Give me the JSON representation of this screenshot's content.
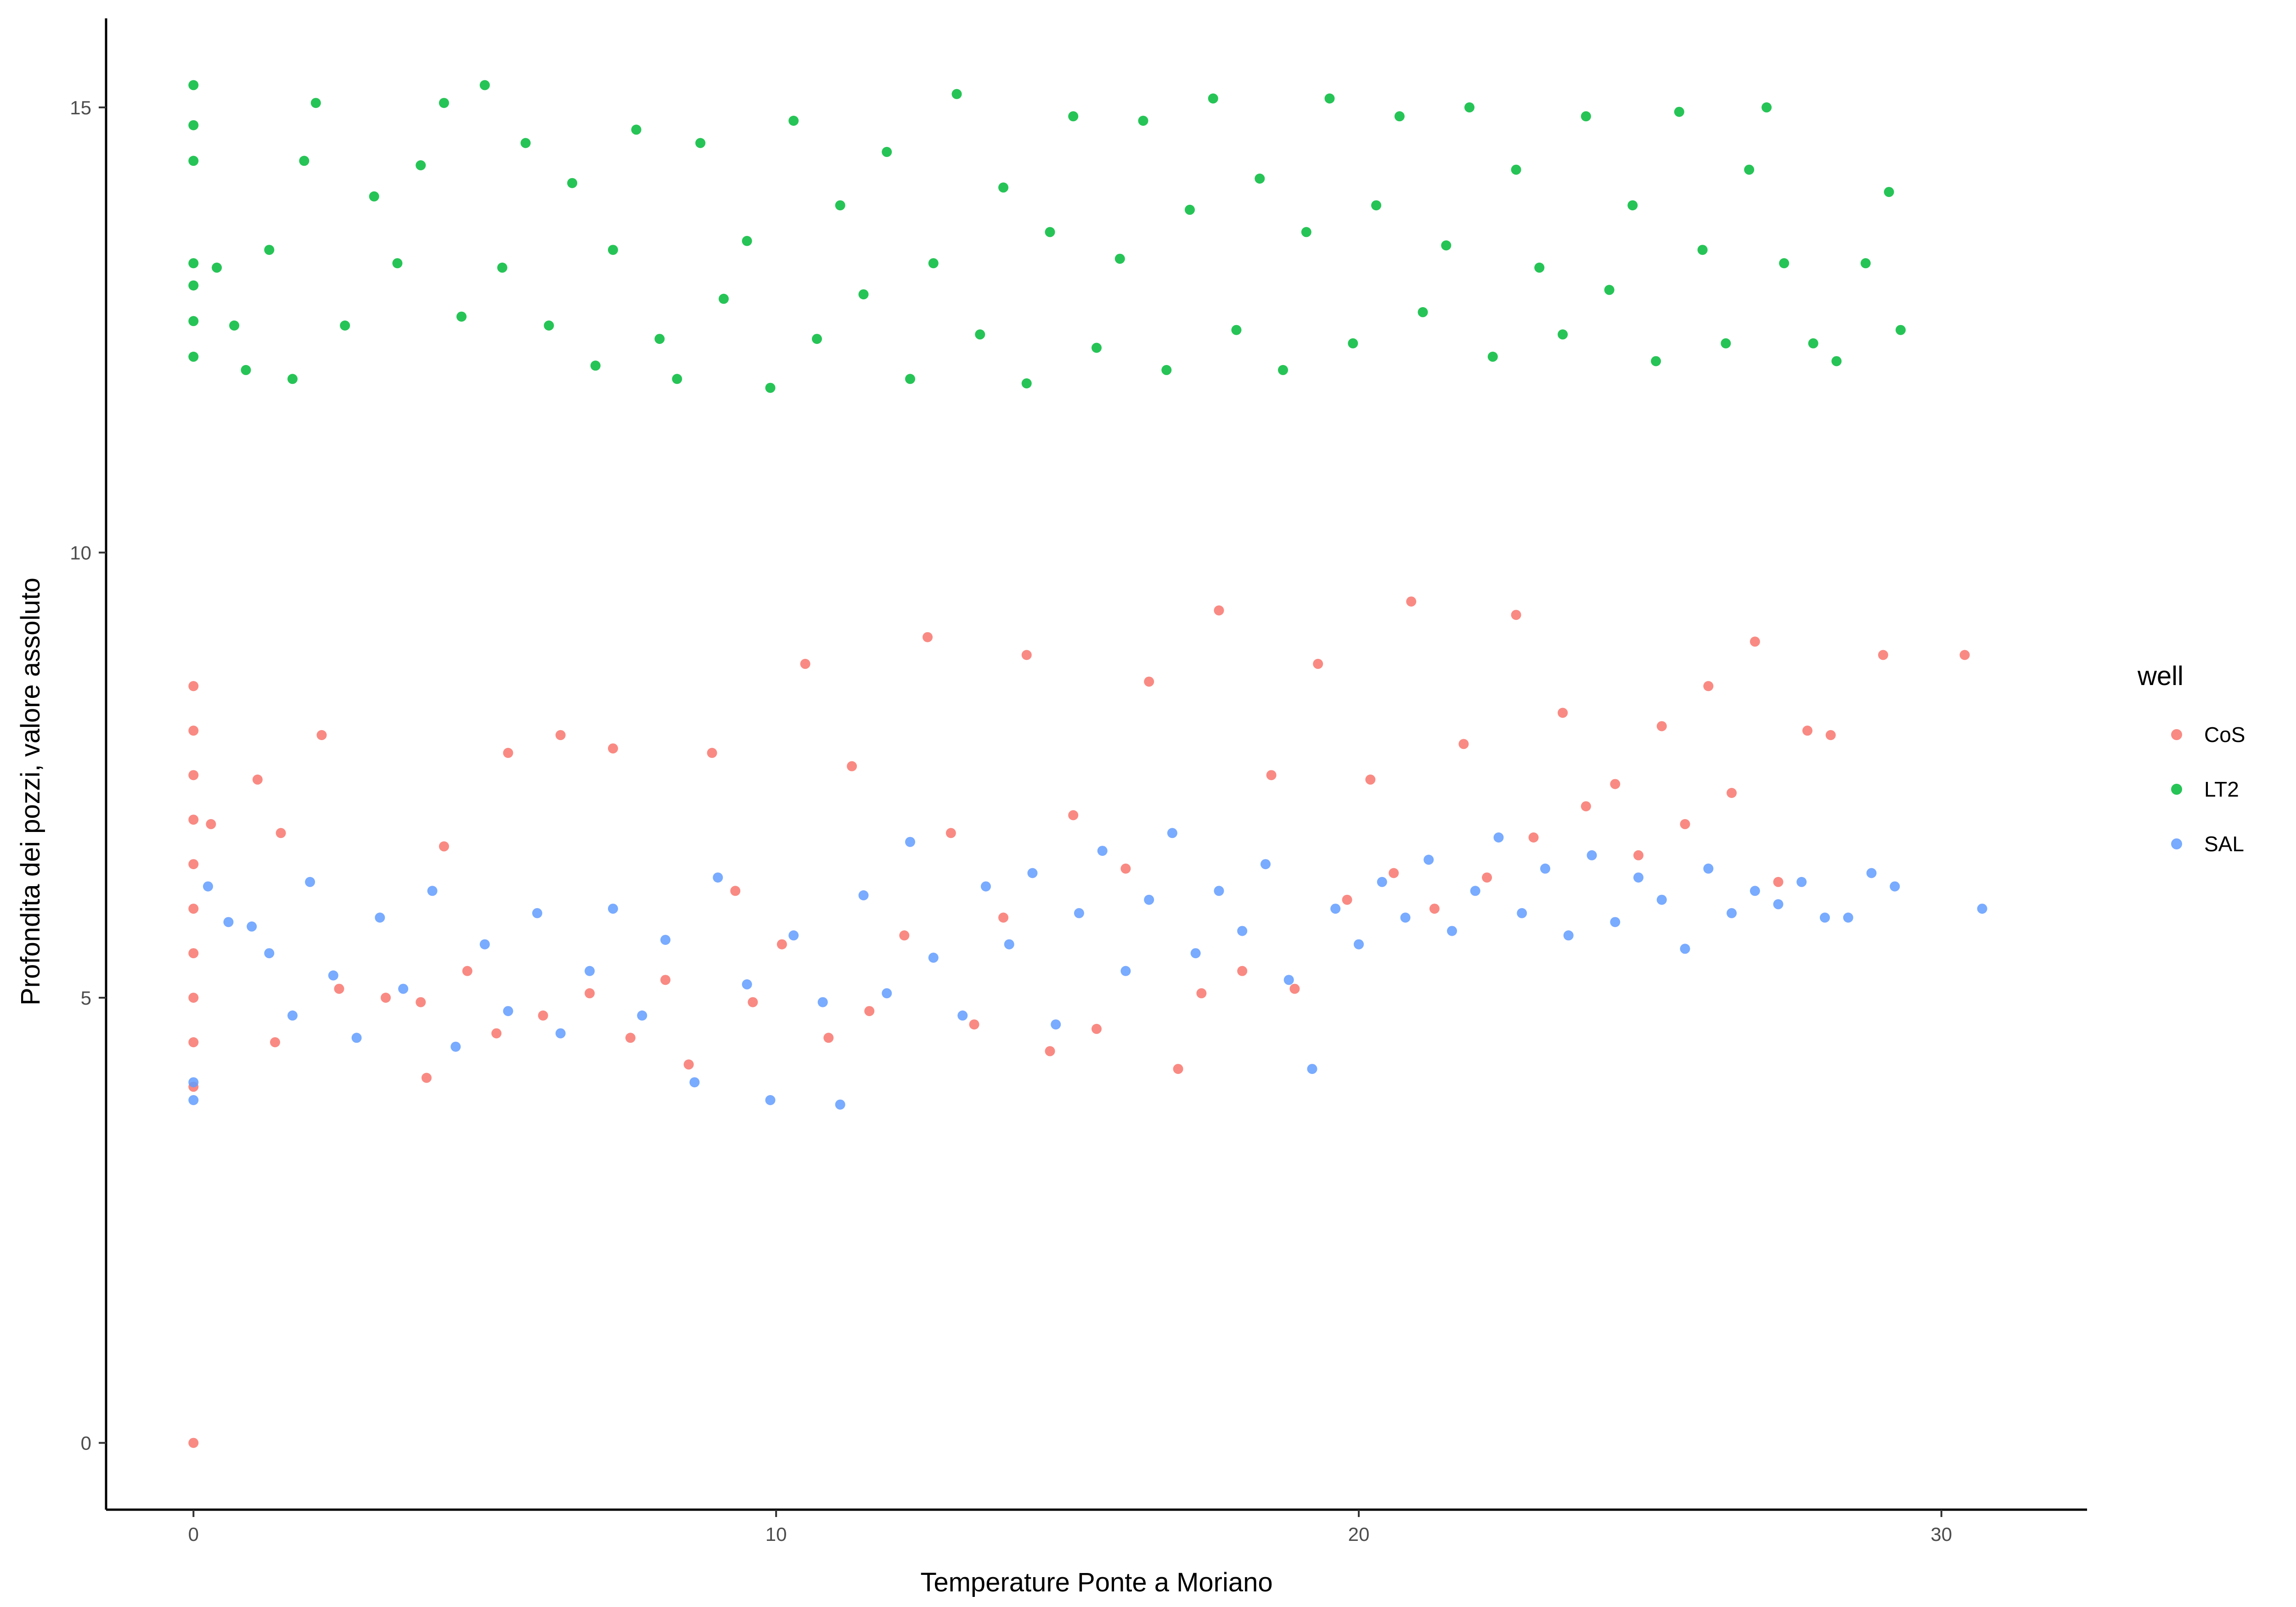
{
  "chart_data": {
    "type": "scatter",
    "title": "",
    "xlabel": "Temperature Ponte a Moriano",
    "ylabel": "Profondita dei pozzi, valore assoluto",
    "xlim": [
      -1.5,
      32.5
    ],
    "ylim": [
      -0.75,
      16.0
    ],
    "xticks": [
      0,
      10,
      20,
      30
    ],
    "yticks": [
      0,
      5,
      10,
      15
    ],
    "grid": false,
    "legend": {
      "title": "well",
      "position": "right"
    },
    "series": [
      {
        "name": "CoS",
        "color": "#F8766D",
        "points": [
          [
            0,
            0.0
          ],
          [
            0,
            4.0
          ],
          [
            0,
            4.5
          ],
          [
            0,
            5.0
          ],
          [
            0,
            5.5
          ],
          [
            0,
            6.0
          ],
          [
            0,
            6.5
          ],
          [
            0,
            7.0
          ],
          [
            0,
            7.5
          ],
          [
            0,
            8.0
          ],
          [
            0,
            8.5
          ],
          [
            0.3,
            6.95
          ],
          [
            1.1,
            7.45
          ],
          [
            1.4,
            4.5
          ],
          [
            1.5,
            6.85
          ],
          [
            2.2,
            7.95
          ],
          [
            2.5,
            5.1
          ],
          [
            3.3,
            5.0
          ],
          [
            3.9,
            4.95
          ],
          [
            4.0,
            4.1
          ],
          [
            4.3,
            6.7
          ],
          [
            4.7,
            5.3
          ],
          [
            5.2,
            4.6
          ],
          [
            5.4,
            7.75
          ],
          [
            6.0,
            4.8
          ],
          [
            6.3,
            7.95
          ],
          [
            6.8,
            5.05
          ],
          [
            7.2,
            7.8
          ],
          [
            7.5,
            4.55
          ],
          [
            8.1,
            5.2
          ],
          [
            8.5,
            4.25
          ],
          [
            8.9,
            7.75
          ],
          [
            9.3,
            6.2
          ],
          [
            9.6,
            4.95
          ],
          [
            10.1,
            5.6
          ],
          [
            10.5,
            8.75
          ],
          [
            10.9,
            4.55
          ],
          [
            11.3,
            7.6
          ],
          [
            11.6,
            4.85
          ],
          [
            12.2,
            5.7
          ],
          [
            12.6,
            9.05
          ],
          [
            13.0,
            6.85
          ],
          [
            13.4,
            4.7
          ],
          [
            13.9,
            5.9
          ],
          [
            14.3,
            8.85
          ],
          [
            14.7,
            4.4
          ],
          [
            15.1,
            7.05
          ],
          [
            15.5,
            4.65
          ],
          [
            16.0,
            6.45
          ],
          [
            16.4,
            8.55
          ],
          [
            16.9,
            4.2
          ],
          [
            17.3,
            5.05
          ],
          [
            17.6,
            9.35
          ],
          [
            18.0,
            5.3
          ],
          [
            18.5,
            7.5
          ],
          [
            18.9,
            5.1
          ],
          [
            19.3,
            8.75
          ],
          [
            19.8,
            6.1
          ],
          [
            20.2,
            7.45
          ],
          [
            20.6,
            6.4
          ],
          [
            20.9,
            9.45
          ],
          [
            21.3,
            6.0
          ],
          [
            21.8,
            7.85
          ],
          [
            22.2,
            6.35
          ],
          [
            22.7,
            9.3
          ],
          [
            23.0,
            6.8
          ],
          [
            23.5,
            8.2
          ],
          [
            23.9,
            7.15
          ],
          [
            24.4,
            7.4
          ],
          [
            24.8,
            6.6
          ],
          [
            25.2,
            8.05
          ],
          [
            25.6,
            6.95
          ],
          [
            26.0,
            8.5
          ],
          [
            26.4,
            7.3
          ],
          [
            26.8,
            9.0
          ],
          [
            27.2,
            6.3
          ],
          [
            27.7,
            8.0
          ],
          [
            28.1,
            7.95
          ],
          [
            29.0,
            8.85
          ],
          [
            30.4,
            8.85
          ]
        ]
      },
      {
        "name": "LT2",
        "color": "#00BA38",
        "points": [
          [
            0,
            12.2
          ],
          [
            0,
            12.6
          ],
          [
            0,
            13.0
          ],
          [
            0,
            13.25
          ],
          [
            0,
            14.4
          ],
          [
            0,
            14.8
          ],
          [
            0,
            15.25
          ],
          [
            0.4,
            13.2
          ],
          [
            0.7,
            12.55
          ],
          [
            0.9,
            12.05
          ],
          [
            1.3,
            13.4
          ],
          [
            1.7,
            11.95
          ],
          [
            1.9,
            14.4
          ],
          [
            2.1,
            15.05
          ],
          [
            2.6,
            12.55
          ],
          [
            3.1,
            14.0
          ],
          [
            3.5,
            13.25
          ],
          [
            3.9,
            14.35
          ],
          [
            4.3,
            15.05
          ],
          [
            4.6,
            12.65
          ],
          [
            5.0,
            15.25
          ],
          [
            5.3,
            13.2
          ],
          [
            5.7,
            14.6
          ],
          [
            6.1,
            12.55
          ],
          [
            6.5,
            14.15
          ],
          [
            6.9,
            12.1
          ],
          [
            7.2,
            13.4
          ],
          [
            7.6,
            14.75
          ],
          [
            8.0,
            12.4
          ],
          [
            8.3,
            11.95
          ],
          [
            8.7,
            14.6
          ],
          [
            9.1,
            12.85
          ],
          [
            9.5,
            13.5
          ],
          [
            9.9,
            11.85
          ],
          [
            10.3,
            14.85
          ],
          [
            10.7,
            12.4
          ],
          [
            11.1,
            13.9
          ],
          [
            11.5,
            12.9
          ],
          [
            11.9,
            14.5
          ],
          [
            12.3,
            11.95
          ],
          [
            12.7,
            13.25
          ],
          [
            13.1,
            15.15
          ],
          [
            13.5,
            12.45
          ],
          [
            13.9,
            14.1
          ],
          [
            14.3,
            11.9
          ],
          [
            14.7,
            13.6
          ],
          [
            15.1,
            14.9
          ],
          [
            15.5,
            12.3
          ],
          [
            15.9,
            13.3
          ],
          [
            16.3,
            14.85
          ],
          [
            16.7,
            12.05
          ],
          [
            17.1,
            13.85
          ],
          [
            17.5,
            15.1
          ],
          [
            17.9,
            12.5
          ],
          [
            18.3,
            14.2
          ],
          [
            18.7,
            12.05
          ],
          [
            19.1,
            13.6
          ],
          [
            19.5,
            15.1
          ],
          [
            19.9,
            12.35
          ],
          [
            20.3,
            13.9
          ],
          [
            20.7,
            14.9
          ],
          [
            21.1,
            12.7
          ],
          [
            21.5,
            13.45
          ],
          [
            21.9,
            15.0
          ],
          [
            22.3,
            12.2
          ],
          [
            22.7,
            14.3
          ],
          [
            23.1,
            13.2
          ],
          [
            23.5,
            12.45
          ],
          [
            23.9,
            14.9
          ],
          [
            24.3,
            12.95
          ],
          [
            24.7,
            13.9
          ],
          [
            25.1,
            12.15
          ],
          [
            25.5,
            14.95
          ],
          [
            25.9,
            13.4
          ],
          [
            26.3,
            12.35
          ],
          [
            26.7,
            14.3
          ],
          [
            27.0,
            15.0
          ],
          [
            27.3,
            13.25
          ],
          [
            27.8,
            12.35
          ],
          [
            28.2,
            12.15
          ],
          [
            28.7,
            13.25
          ],
          [
            29.1,
            14.05
          ],
          [
            29.3,
            12.5
          ]
        ]
      },
      {
        "name": "SAL",
        "color": "#619CFF",
        "points": [
          [
            0,
            3.85
          ],
          [
            0,
            4.05
          ],
          [
            0.25,
            6.25
          ],
          [
            0.6,
            5.85
          ],
          [
            1.0,
            5.8
          ],
          [
            1.3,
            5.5
          ],
          [
            1.7,
            4.8
          ],
          [
            2.0,
            6.3
          ],
          [
            2.4,
            5.25
          ],
          [
            2.8,
            4.55
          ],
          [
            3.2,
            5.9
          ],
          [
            3.6,
            5.1
          ],
          [
            4.1,
            6.2
          ],
          [
            4.5,
            4.45
          ],
          [
            5.0,
            5.6
          ],
          [
            5.4,
            4.85
          ],
          [
            5.9,
            5.95
          ],
          [
            6.3,
            4.6
          ],
          [
            6.8,
            5.3
          ],
          [
            7.2,
            6.0
          ],
          [
            7.7,
            4.8
          ],
          [
            8.1,
            5.65
          ],
          [
            8.6,
            4.05
          ],
          [
            9.0,
            6.35
          ],
          [
            9.5,
            5.15
          ],
          [
            9.9,
            3.85
          ],
          [
            10.3,
            5.7
          ],
          [
            10.8,
            4.95
          ],
          [
            11.1,
            3.8
          ],
          [
            11.5,
            6.15
          ],
          [
            11.9,
            5.05
          ],
          [
            12.3,
            6.75
          ],
          [
            12.7,
            5.45
          ],
          [
            13.2,
            4.8
          ],
          [
            13.6,
            6.25
          ],
          [
            14.0,
            5.6
          ],
          [
            14.4,
            6.4
          ],
          [
            14.8,
            4.7
          ],
          [
            15.2,
            5.95
          ],
          [
            15.6,
            6.65
          ],
          [
            16.0,
            5.3
          ],
          [
            16.4,
            6.1
          ],
          [
            16.8,
            6.85
          ],
          [
            17.2,
            5.5
          ],
          [
            17.6,
            6.2
          ],
          [
            18.0,
            5.75
          ],
          [
            18.4,
            6.5
          ],
          [
            18.8,
            5.2
          ],
          [
            19.2,
            4.2
          ],
          [
            19.6,
            6.0
          ],
          [
            20.0,
            5.6
          ],
          [
            20.4,
            6.3
          ],
          [
            20.8,
            5.9
          ],
          [
            21.2,
            6.55
          ],
          [
            21.6,
            5.75
          ],
          [
            22.0,
            6.2
          ],
          [
            22.4,
            6.8
          ],
          [
            22.8,
            5.95
          ],
          [
            23.2,
            6.45
          ],
          [
            23.6,
            5.7
          ],
          [
            24.0,
            6.6
          ],
          [
            24.4,
            5.85
          ],
          [
            24.8,
            6.35
          ],
          [
            25.2,
            6.1
          ],
          [
            25.6,
            5.55
          ],
          [
            26.0,
            6.45
          ],
          [
            26.4,
            5.95
          ],
          [
            26.8,
            6.2
          ],
          [
            27.2,
            6.05
          ],
          [
            27.6,
            6.3
          ],
          [
            28.0,
            5.9
          ],
          [
            28.4,
            5.9
          ],
          [
            28.8,
            6.4
          ],
          [
            29.2,
            6.25
          ],
          [
            30.7,
            6.0
          ]
        ]
      }
    ]
  }
}
